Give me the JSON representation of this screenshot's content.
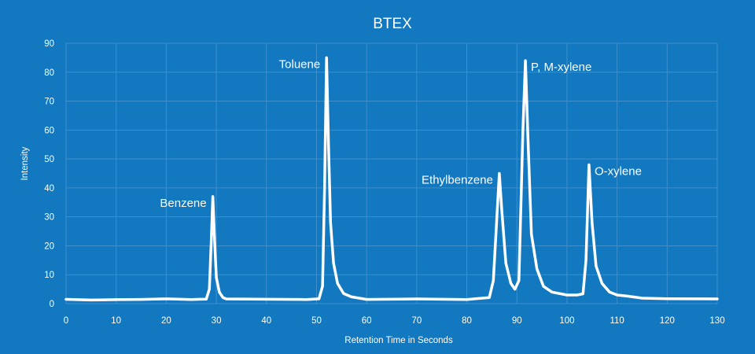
{
  "chart_data": {
    "type": "line",
    "title": "BTEX",
    "xlabel": "Retention Time in Seconds",
    "ylabel": "Intensity",
    "xlim": [
      0,
      130
    ],
    "ylim": [
      0,
      90
    ],
    "x_ticks": [
      0,
      10,
      20,
      30,
      40,
      50,
      60,
      70,
      80,
      90,
      100,
      110,
      120,
      130
    ],
    "y_ticks": [
      0,
      10,
      20,
      30,
      40,
      50,
      60,
      70,
      80,
      90
    ],
    "grid": true,
    "baseline": 1.5,
    "series": [
      {
        "values": [
          [
            0,
            1.5
          ],
          [
            5,
            1.4
          ],
          [
            10,
            1.5
          ],
          [
            15,
            1.4
          ],
          [
            20,
            1.5
          ],
          [
            25,
            1.4
          ],
          [
            28,
            1.6
          ],
          [
            28.6,
            5
          ],
          [
            29,
            22
          ],
          [
            29.3,
            37
          ],
          [
            29.6,
            24
          ],
          [
            30,
            9
          ],
          [
            30.6,
            4
          ],
          [
            31.3,
            2
          ],
          [
            32,
            1.5
          ],
          [
            40,
            1.5
          ],
          [
            48,
            1.6
          ],
          [
            50.5,
            1.8
          ],
          [
            51.2,
            6
          ],
          [
            51.6,
            40
          ],
          [
            52,
            85
          ],
          [
            52.4,
            55
          ],
          [
            52.8,
            28
          ],
          [
            53.4,
            14
          ],
          [
            54.2,
            7
          ],
          [
            55.4,
            3.5
          ],
          [
            57,
            2.2
          ],
          [
            60,
            1.6
          ],
          [
            70,
            1.5
          ],
          [
            80,
            1.5
          ],
          [
            84.5,
            2
          ],
          [
            85.3,
            8
          ],
          [
            86,
            30
          ],
          [
            86.5,
            45
          ],
          [
            87,
            32
          ],
          [
            87.8,
            14
          ],
          [
            88.8,
            7
          ],
          [
            89.6,
            5
          ],
          [
            90.4,
            8
          ],
          [
            91.2,
            60
          ],
          [
            91.7,
            84
          ],
          [
            92.2,
            58
          ],
          [
            92.9,
            24
          ],
          [
            94,
            12
          ],
          [
            95.3,
            6
          ],
          [
            97,
            4
          ],
          [
            100,
            3
          ],
          [
            102,
            3
          ],
          [
            103.2,
            3.4
          ],
          [
            103.8,
            15
          ],
          [
            104.4,
            48
          ],
          [
            105,
            28
          ],
          [
            105.8,
            13
          ],
          [
            107,
            7
          ],
          [
            108.5,
            4
          ],
          [
            110,
            3
          ],
          [
            112,
            2.5
          ],
          [
            115,
            2
          ],
          [
            120,
            1.6
          ],
          [
            125,
            1.5
          ],
          [
            130,
            1.6
          ]
        ]
      }
    ],
    "annotations": [
      {
        "text": "Benzene",
        "x": 29.3,
        "y": 37
      },
      {
        "text": "Toluene",
        "x": 52,
        "y": 85
      },
      {
        "text": "Ethylbenzene",
        "x": 86.5,
        "y": 45
      },
      {
        "text": "P, M-xylene",
        "x": 91.7,
        "y": 84
      },
      {
        "text": "O-xylene",
        "x": 104.4,
        "y": 48
      }
    ]
  },
  "colors": {
    "background": "#1278c0",
    "grid": "#3f8fcb",
    "line": "#ffffff",
    "text": "#ffffff"
  }
}
